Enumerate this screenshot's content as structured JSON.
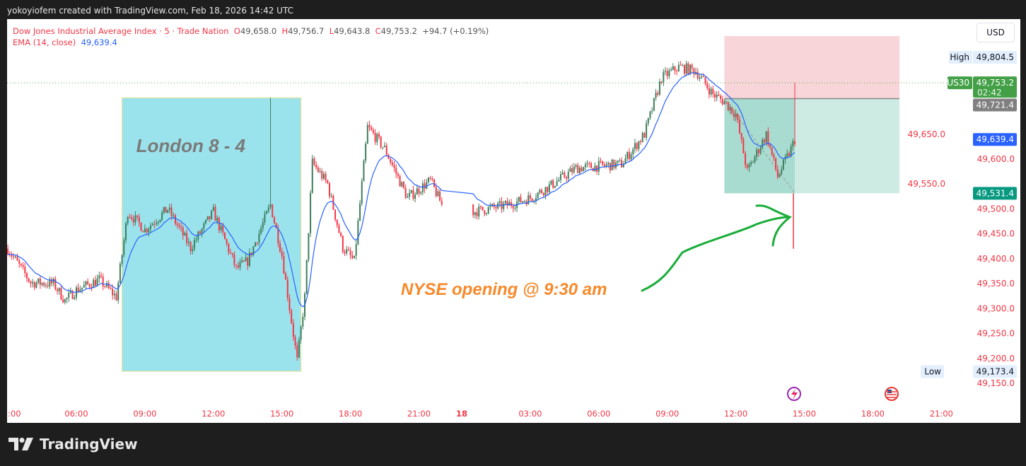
{
  "caption": "yokoyiofem created with TradingView.com, Feb 18, 2026 14:42 UTC",
  "legend": {
    "symbol": "Dow Jones Industrial Average Index · 5 · Trade Nation",
    "o_label": "O",
    "o": "49,658.0",
    "h_label": "H",
    "h": "49,756.7",
    "l_label": "L",
    "l": "49,643.8",
    "c_label": "C",
    "c": "49,753.2",
    "change": "+94.7 (+0.19%)",
    "ema_label": "EMA (14, close)",
    "ema_value": "49,639.4"
  },
  "currency": "USD",
  "badges": {
    "high_label": "High",
    "high": "49,804.5",
    "symbol_tag": "US30",
    "last": "49,753.2",
    "countdown": "02:42",
    "entry": "49,721.4",
    "ema": "49,639.4",
    "target": "49,531.4",
    "low_label": "Low",
    "low": "49,173.4"
  },
  "annotations": {
    "london": "London 8 - 4",
    "nyse": "NYSE opening @ 9:30 am"
  },
  "footer": {
    "brand": "TradingView"
  },
  "colors": {
    "up": "#3d7d5c",
    "down": "#f23645",
    "ema": "#2962ff",
    "axis_text": "#f23645",
    "london_box": "#9be3ec",
    "annotation_orange": "#f7892a",
    "arrow_green": "#1aad3a",
    "stop_zone": "#f8d5d8",
    "target_zone": "#cdeae3"
  },
  "chart_data": {
    "type": "candlestick",
    "interval": "5 min",
    "symbol": "US30",
    "indicator": "EMA 14",
    "price_path": [
      [
        "17 03:00",
        49420
      ],
      [
        "17 04:00",
        49352
      ],
      [
        "17 05:00",
        49350
      ],
      [
        "17 05:30",
        49316
      ],
      [
        "17 06:00",
        49337
      ],
      [
        "17 07:00",
        49358
      ],
      [
        "17 07:45",
        49323
      ],
      [
        "17 08:15",
        49494
      ],
      [
        "17 09:00",
        49458
      ],
      [
        "17 10:00",
        49500
      ],
      [
        "17 11:00",
        49422
      ],
      [
        "17 12:00",
        49494
      ],
      [
        "17 13:00",
        49380
      ],
      [
        "17 13:30",
        49395
      ],
      [
        "17 14:30",
        49508
      ],
      [
        "17 15:00",
        49408
      ],
      [
        "17 15:40",
        49195
      ],
      [
        "17 16:00",
        49323
      ],
      [
        "17 16:20",
        49593
      ],
      [
        "17 17:00",
        49550
      ],
      [
        "17 17:40",
        49422
      ],
      [
        "17 18:10",
        49395
      ],
      [
        "17 18:45",
        49664
      ],
      [
        "17 19:30",
        49621
      ],
      [
        "17 20:30",
        49522
      ],
      [
        "17 21:30",
        49557
      ],
      [
        "17 22:00",
        49508
      ],
      [
        "18 00:30",
        49494
      ],
      [
        "18 02:00",
        49508
      ],
      [
        "18 03:00",
        49522
      ],
      [
        "18 04:00",
        49550
      ],
      [
        "18 05:00",
        49582
      ],
      [
        "18 06:00",
        49586
      ],
      [
        "18 07:00",
        49590
      ],
      [
        "18 08:00",
        49650
      ],
      [
        "18 08:45",
        49763
      ],
      [
        "18 09:30",
        49785
      ],
      [
        "18 10:15",
        49777
      ],
      [
        "18 11:00",
        49730
      ],
      [
        "18 11:30",
        49715
      ],
      [
        "18 12:00",
        49690
      ],
      [
        "18 12:30",
        49575
      ],
      [
        "18 13:20",
        49650
      ],
      [
        "18 13:50",
        49565
      ],
      [
        "18 14:25",
        49620
      ],
      [
        "18 14:35",
        49640
      ],
      [
        "18 14:40",
        49753
      ]
    ],
    "ylim": [
      49120,
      49880
    ],
    "y_ticks": [
      "49,650.0",
      "49,600.0",
      "49,550.0",
      "49,500.0",
      "49,450.0",
      "49,400.0",
      "49,350.0",
      "49,300.0",
      "49,250.0",
      "49,200.0",
      "49,150.0"
    ],
    "x_ticks": [
      {
        "label": ":00",
        "time": "17 03:00"
      },
      {
        "label": "06:00",
        "time": "17 06:00"
      },
      {
        "label": "09:00",
        "time": "17 09:00"
      },
      {
        "label": "12:00",
        "time": "17 12:00"
      },
      {
        "label": "15:00",
        "time": "17 15:00"
      },
      {
        "label": "18:00",
        "time": "17 18:00"
      },
      {
        "label": "21:00",
        "time": "17 21:00"
      },
      {
        "label": "18",
        "time": "18 00:00",
        "bold": true
      },
      {
        "label": "03:00",
        "time": "18 03:00"
      },
      {
        "label": "06:00",
        "time": "18 06:00"
      },
      {
        "label": "09:00",
        "time": "18 09:00"
      },
      {
        "label": "12:00",
        "time": "18 12:00"
      },
      {
        "label": "15:00",
        "time": "18 15:00"
      },
      {
        "label": "18:00",
        "time": "18 18:00"
      },
      {
        "label": "21:00",
        "time": "18 21:00"
      }
    ],
    "london_session": {
      "start": "17 08:00",
      "end": "17 15:50",
      "top": 49723,
      "bottom": 49174
    },
    "position": {
      "start": "18 11:30",
      "end": "18 19:10",
      "stop": 49847,
      "entry": 49721.4,
      "target": 49531.4
    },
    "high": 49804.5,
    "low": 49173.4,
    "last": 49753.2,
    "ema_last": 49639.4
  }
}
